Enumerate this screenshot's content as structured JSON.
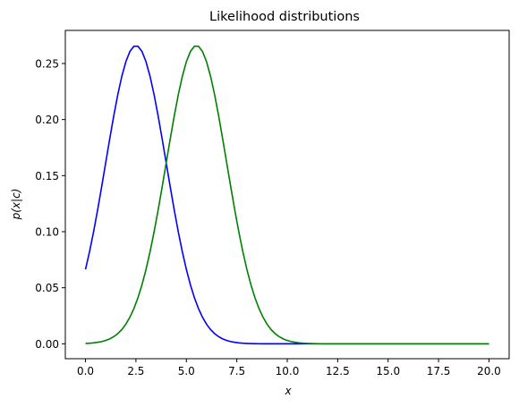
{
  "chart_data": {
    "type": "line",
    "title": "Likelihood distributions",
    "xlabel": "x",
    "ylabel": "p(x|c)",
    "xlim": [
      -1,
      21
    ],
    "ylim": [
      -0.0133,
      0.2795
    ],
    "xticks": [
      "0.0",
      "2.5",
      "5.0",
      "7.5",
      "10.0",
      "12.5",
      "15.0",
      "17.5",
      "20.0"
    ],
    "yticks": [
      "0.00",
      "0.05",
      "0.10",
      "0.15",
      "0.20",
      "0.25"
    ],
    "grid": false,
    "legend": "none",
    "series": [
      {
        "color": "#0000ff",
        "distribution": {
          "mean": 2.5,
          "std": 1.5
        },
        "x": [
          0,
          0.5,
          1,
          1.5,
          2,
          2.5,
          3,
          3.5,
          4,
          4.5,
          5,
          5.5,
          6,
          6.5,
          7,
          7.5,
          8,
          8.5,
          9,
          10,
          12,
          15,
          20
        ],
        "y": [
          0.0664,
          0.1093,
          0.1613,
          0.213,
          0.2516,
          0.266,
          0.2516,
          0.213,
          0.1613,
          0.1093,
          0.0664,
          0.036,
          0.0175,
          0.0076,
          0.003,
          0.001,
          0.0003,
          0.0001,
          0.0,
          0.0,
          0.0,
          0.0,
          0.0
        ]
      },
      {
        "color": "#008000",
        "distribution": {
          "mean": 5.5,
          "std": 1.5
        },
        "x": [
          0,
          0.5,
          1,
          1.5,
          2,
          2.5,
          3,
          3.5,
          4,
          4.5,
          5,
          5.5,
          6,
          6.5,
          7,
          7.5,
          8,
          8.5,
          9,
          9.5,
          10,
          10.5,
          11,
          11.5,
          12,
          15,
          20
        ],
        "y": [
          0.0003,
          0.001,
          0.003,
          0.0076,
          0.0175,
          0.036,
          0.0664,
          0.1093,
          0.1613,
          0.213,
          0.2516,
          0.266,
          0.2516,
          0.213,
          0.1613,
          0.1093,
          0.0664,
          0.036,
          0.0175,
          0.0076,
          0.003,
          0.001,
          0.0003,
          0.0001,
          0.0,
          0.0,
          0.0
        ]
      }
    ]
  }
}
